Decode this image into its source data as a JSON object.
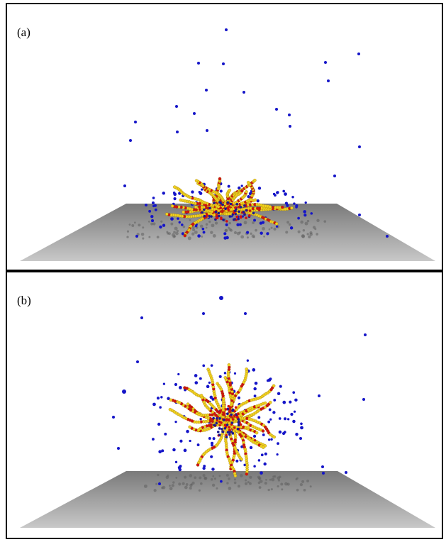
{
  "panels": [
    {
      "id": "a",
      "label": "(a)",
      "view": "side"
    },
    {
      "id": "b",
      "label": "(b)",
      "view": "upright"
    }
  ],
  "colors": {
    "frame": "#000000",
    "floor_light": "#c8c8c8",
    "floor_dark": "#7a7a7a",
    "shadow": "#5e5e5e",
    "free_particle": "#1515c8",
    "chain_bead_primary": "#f0d020",
    "chain_bead_secondary": "#d01010",
    "core_bead": "#1a1a90"
  }
}
